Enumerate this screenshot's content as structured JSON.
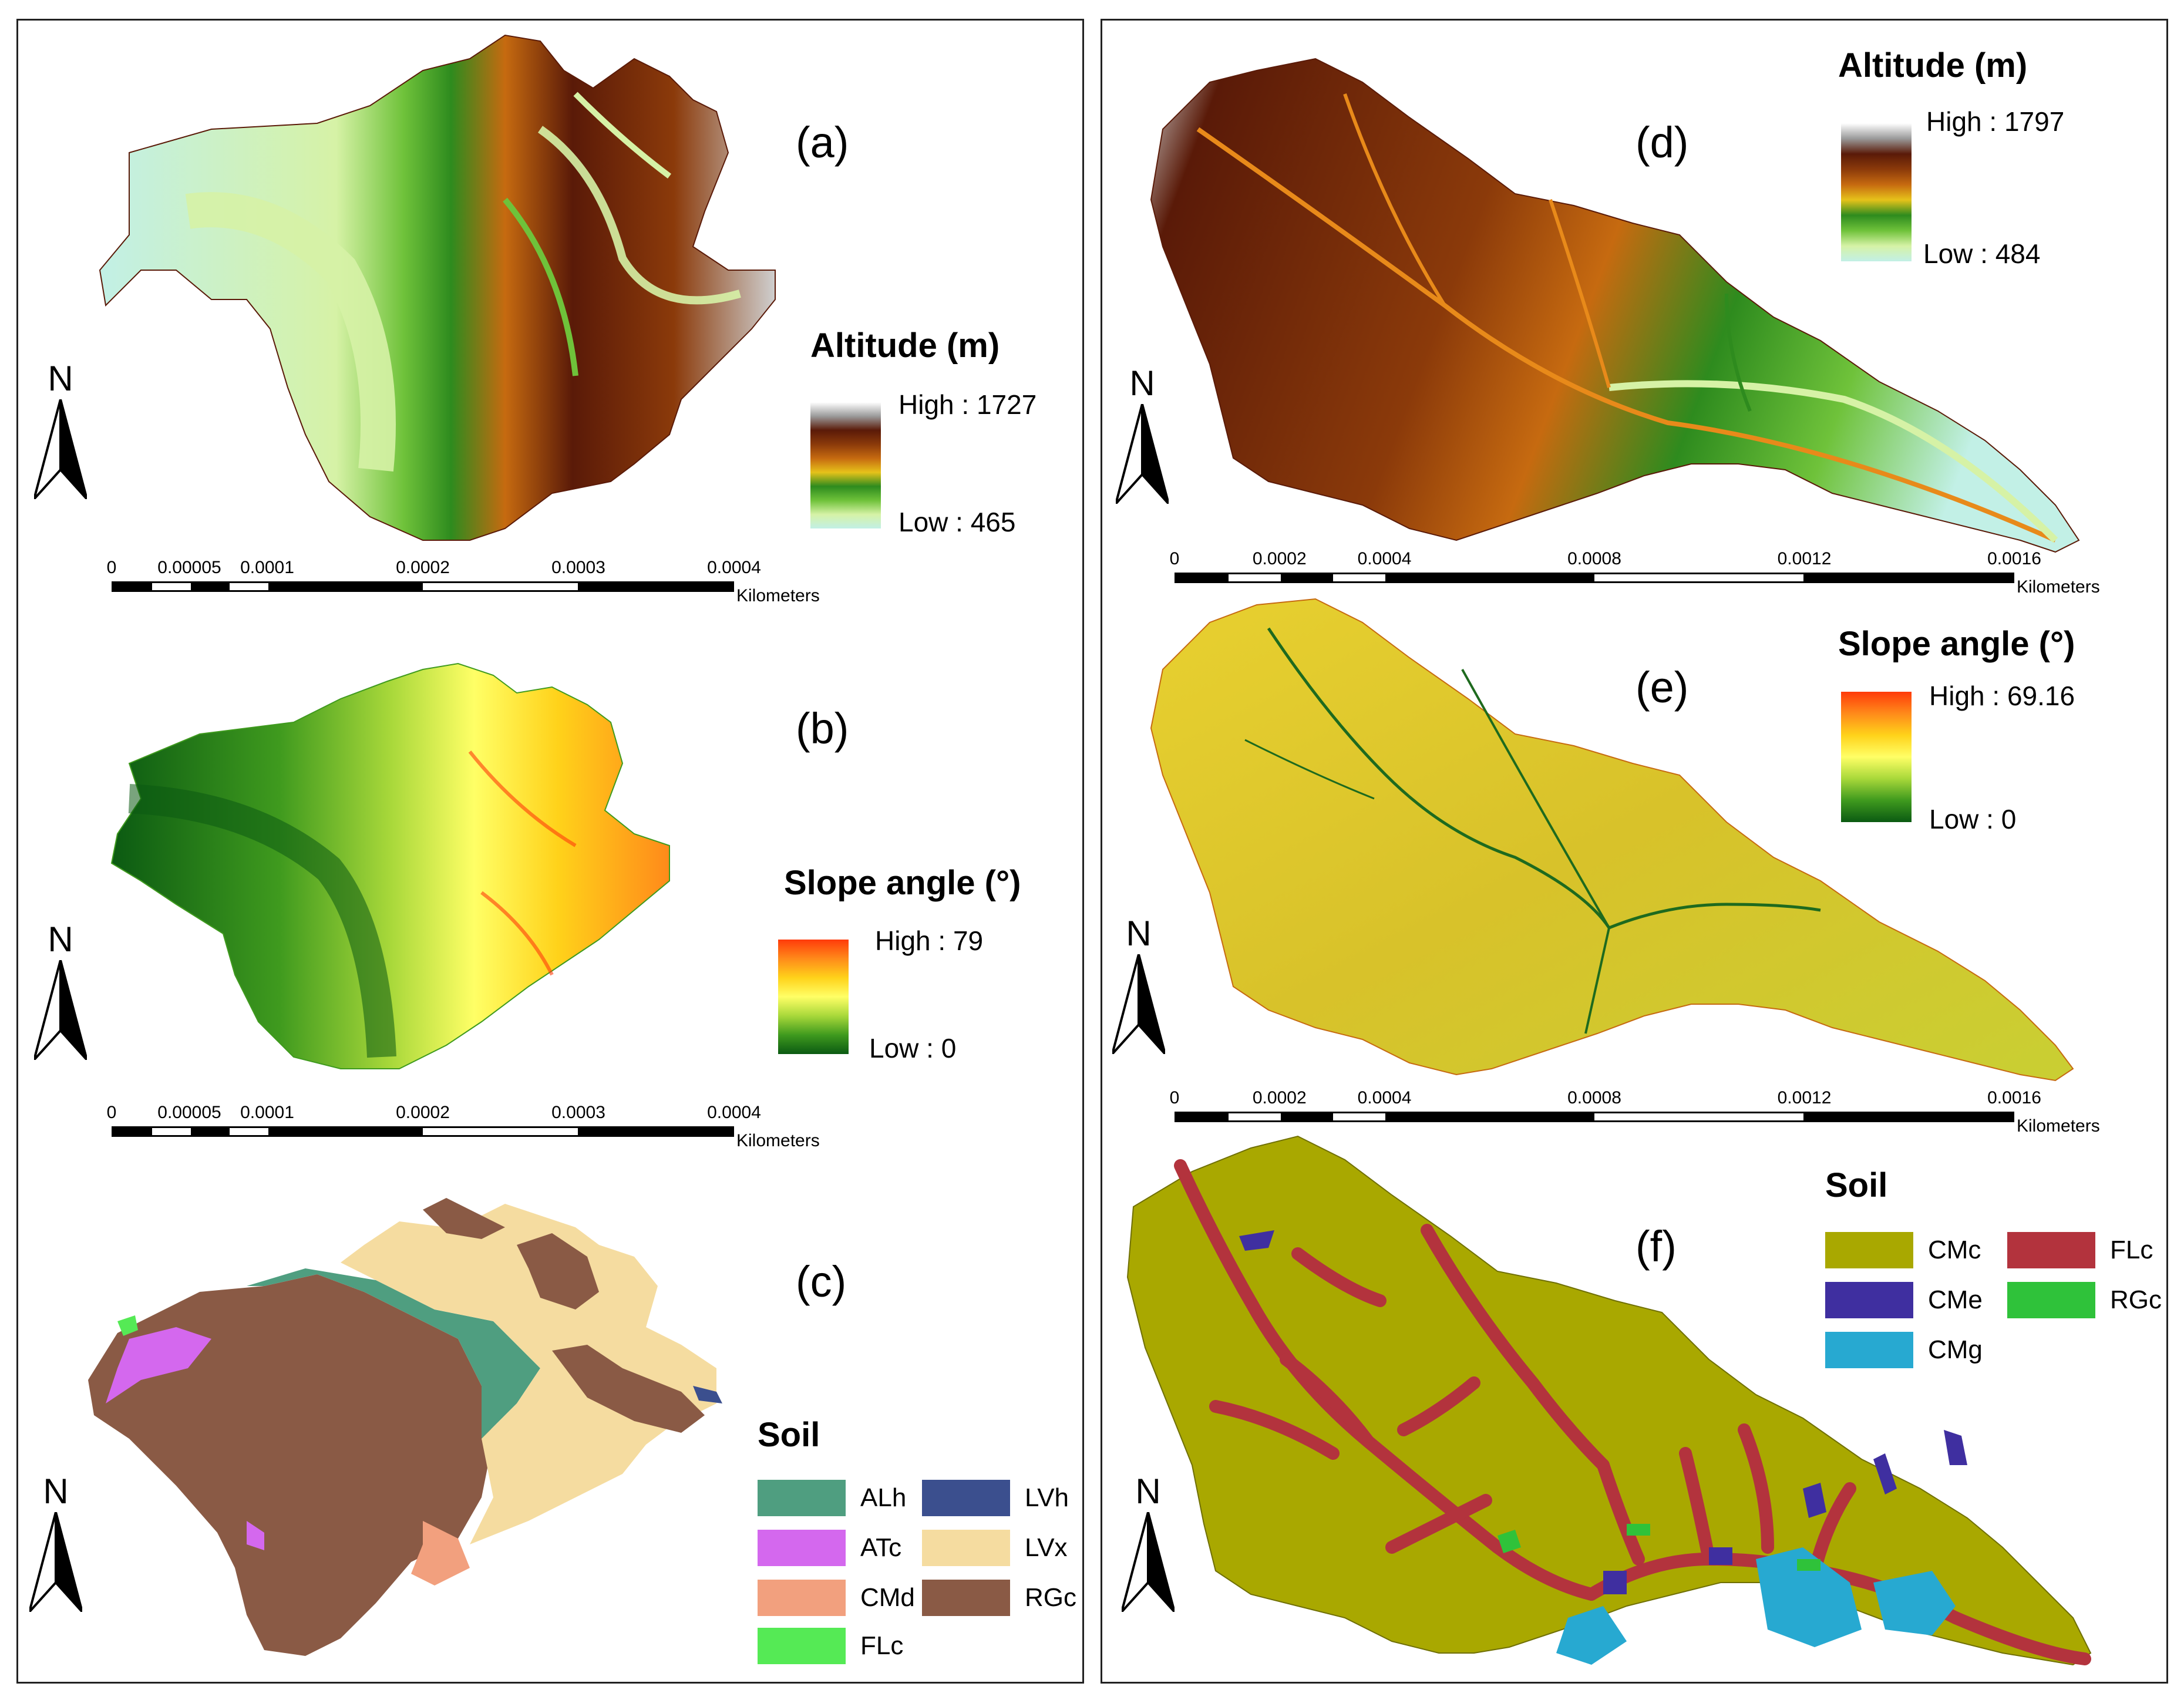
{
  "left_panel": {
    "a": {
      "label": "(a)",
      "legend_title": "Altitude (m)",
      "high": "High : 1727",
      "low": "Low : 465",
      "ramp_colors": [
        "#ffffff",
        "#9a9a9a",
        "#5a1a08",
        "#8b3a0a",
        "#c66a10",
        "#e6c21a",
        "#2e8b1e",
        "#6fc23a",
        "#d6f2a6",
        "#c2f0e6"
      ],
      "scale_ticks": [
        "0",
        "0.00005",
        "0.0001",
        "0.0002",
        "0.0003",
        "0.0004"
      ],
      "scale_units": "Kilometers"
    },
    "b": {
      "label": "(b)",
      "legend_title": "Slope angle (°)",
      "high": "High : 79",
      "low": "Low : 0",
      "ramp_colors": [
        "#ff3b0a",
        "#ff8a1a",
        "#ffd21a",
        "#ffff66",
        "#a8d83a",
        "#3f9a1e",
        "#0b5a12"
      ],
      "scale_ticks": [
        "0",
        "0.00005",
        "0.0001",
        "0.0002",
        "0.0003",
        "0.0004"
      ],
      "scale_units": "Kilometers"
    },
    "c": {
      "label": "(c)",
      "legend_title": "Soil",
      "classes": [
        {
          "name": "ALh",
          "color": "#4f9e80"
        },
        {
          "name": "ATc",
          "color": "#d468ee"
        },
        {
          "name": "CMd",
          "color": "#f2a07e"
        },
        {
          "name": "FLc",
          "color": "#55ea55"
        },
        {
          "name": "LVh",
          "color": "#3b4f8e"
        },
        {
          "name": "LVx",
          "color": "#f5dca0"
        },
        {
          "name": "RGc",
          "color": "#8a5a45"
        }
      ]
    }
  },
  "right_panel": {
    "d": {
      "label": "(d)",
      "legend_title": "Altitude (m)",
      "high": "High : 1797",
      "low": "Low : 484",
      "ramp_colors": [
        "#ffffff",
        "#9a9a9a",
        "#5a1a08",
        "#8b3a0a",
        "#c66a10",
        "#e6c21a",
        "#2e8b1e",
        "#6fc23a",
        "#d6f2a6",
        "#c2f0e6"
      ],
      "scale_ticks": [
        "0",
        "0.0002",
        "0.0004",
        "0.0008",
        "0.0012",
        "0.0016"
      ],
      "scale_units": "Kilometers"
    },
    "e": {
      "label": "(e)",
      "legend_title": "Slope angle (°)",
      "high": "High : 69.16",
      "low": "Low : 0",
      "ramp_colors": [
        "#ff3b0a",
        "#ff8a1a",
        "#ffd21a",
        "#ffff66",
        "#a8d83a",
        "#3f9a1e",
        "#0b5a12"
      ],
      "scale_ticks": [
        "0",
        "0.0002",
        "0.0004",
        "0.0008",
        "0.0012",
        "0.0016"
      ],
      "scale_units": "Kilometers"
    },
    "f": {
      "label": "(f)",
      "legend_title": "Soil",
      "classes": [
        {
          "name": "CMc",
          "color": "#a9a800"
        },
        {
          "name": "CMe",
          "color": "#3f2fa0"
        },
        {
          "name": "CMg",
          "color": "#27a9d1"
        },
        {
          "name": "FLc",
          "color": "#b3333d"
        },
        {
          "name": "RGc",
          "color": "#2fc23a"
        }
      ]
    }
  },
  "north_letter": "N"
}
